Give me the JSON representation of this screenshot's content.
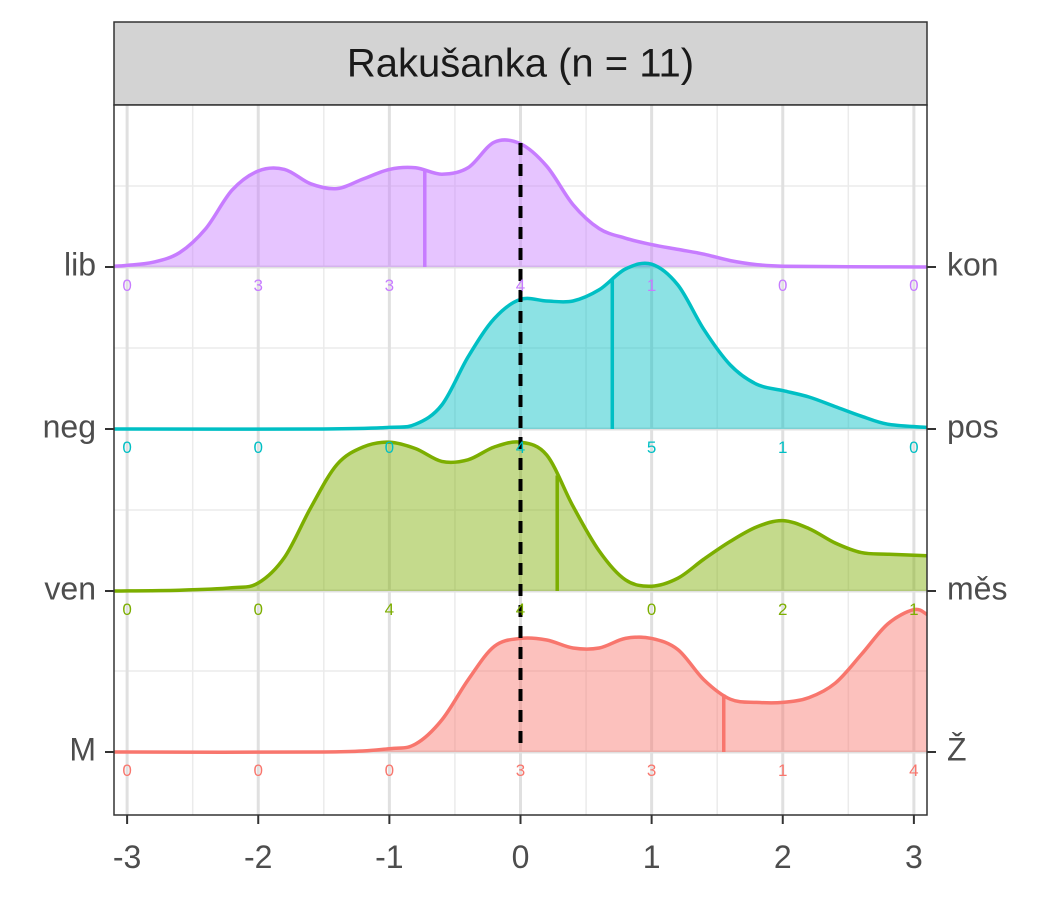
{
  "chart_data": {
    "type": "ridgeline",
    "title": "Rakušanka (n = 11)",
    "xlabel": "",
    "ylabel": "",
    "xlim": [
      -3.1,
      3.1
    ],
    "x_ticks": [
      -3,
      -2,
      -1,
      0,
      1,
      2,
      3
    ],
    "x_tick_labels": [
      "-3",
      "-2",
      "-1",
      "0",
      "1",
      "2",
      "3"
    ],
    "grid": true,
    "reference_line": {
      "x": 0,
      "style": "dashed",
      "color": "#000000"
    },
    "count_positions": [
      -3,
      -2,
      -1,
      0,
      1,
      2,
      3
    ],
    "series": [
      {
        "left_label": "lib",
        "right_label": "kon",
        "color": "#C77CFF",
        "mean": -0.73,
        "counts": [
          0,
          3,
          3,
          4,
          1,
          0,
          0
        ],
        "density": [
          [
            -3.1,
            0.005
          ],
          [
            -3.0,
            0.01
          ],
          [
            -2.8,
            0.03
          ],
          [
            -2.6,
            0.09
          ],
          [
            -2.4,
            0.24
          ],
          [
            -2.2,
            0.48
          ],
          [
            -2.0,
            0.6
          ],
          [
            -1.8,
            0.61
          ],
          [
            -1.6,
            0.52
          ],
          [
            -1.4,
            0.49
          ],
          [
            -1.2,
            0.55
          ],
          [
            -1.0,
            0.61
          ],
          [
            -0.8,
            0.62
          ],
          [
            -0.6,
            0.58
          ],
          [
            -0.4,
            0.62
          ],
          [
            -0.2,
            0.78
          ],
          [
            0.0,
            0.77
          ],
          [
            0.2,
            0.63
          ],
          [
            0.4,
            0.39
          ],
          [
            0.6,
            0.24
          ],
          [
            0.8,
            0.18
          ],
          [
            1.0,
            0.14
          ],
          [
            1.2,
            0.11
          ],
          [
            1.4,
            0.08
          ],
          [
            1.6,
            0.04
          ],
          [
            1.8,
            0.015
          ],
          [
            2.0,
            0.005
          ],
          [
            2.5,
            0.002
          ],
          [
            3.1,
            0.0
          ]
        ]
      },
      {
        "left_label": "neg",
        "right_label": "pos",
        "color": "#00BFC4",
        "mean": 0.7,
        "counts": [
          0,
          0,
          0,
          4,
          5,
          1,
          0
        ],
        "density": [
          [
            -3.1,
            0.0
          ],
          [
            -1.5,
            0.0
          ],
          [
            -1.0,
            0.01
          ],
          [
            -0.8,
            0.03
          ],
          [
            -0.6,
            0.15
          ],
          [
            -0.4,
            0.45
          ],
          [
            -0.2,
            0.69
          ],
          [
            0.0,
            0.81
          ],
          [
            0.2,
            0.8
          ],
          [
            0.4,
            0.8
          ],
          [
            0.6,
            0.87
          ],
          [
            0.8,
            1.0
          ],
          [
            1.0,
            1.03
          ],
          [
            1.2,
            0.9
          ],
          [
            1.4,
            0.62
          ],
          [
            1.6,
            0.4
          ],
          [
            1.8,
            0.28
          ],
          [
            2.0,
            0.24
          ],
          [
            2.2,
            0.2
          ],
          [
            2.4,
            0.14
          ],
          [
            2.6,
            0.08
          ],
          [
            2.8,
            0.03
          ],
          [
            3.1,
            0.01
          ]
        ]
      },
      {
        "left_label": "ven",
        "right_label": "měs",
        "color": "#7CAE00",
        "mean": 0.28,
        "counts": [
          0,
          0,
          4,
          4,
          0,
          2,
          1
        ],
        "density": [
          [
            -3.1,
            0.0
          ],
          [
            -2.6,
            0.005
          ],
          [
            -2.2,
            0.02
          ],
          [
            -2.0,
            0.05
          ],
          [
            -1.8,
            0.21
          ],
          [
            -1.6,
            0.52
          ],
          [
            -1.4,
            0.79
          ],
          [
            -1.2,
            0.9
          ],
          [
            -1.0,
            0.93
          ],
          [
            -0.8,
            0.89
          ],
          [
            -0.6,
            0.81
          ],
          [
            -0.4,
            0.82
          ],
          [
            -0.2,
            0.9
          ],
          [
            0.0,
            0.93
          ],
          [
            0.2,
            0.85
          ],
          [
            0.4,
            0.53
          ],
          [
            0.6,
            0.25
          ],
          [
            0.8,
            0.07
          ],
          [
            1.0,
            0.03
          ],
          [
            1.2,
            0.08
          ],
          [
            1.4,
            0.2
          ],
          [
            1.6,
            0.31
          ],
          [
            1.8,
            0.4
          ],
          [
            2.0,
            0.44
          ],
          [
            2.2,
            0.39
          ],
          [
            2.4,
            0.3
          ],
          [
            2.6,
            0.24
          ],
          [
            2.8,
            0.23
          ],
          [
            3.1,
            0.22
          ]
        ]
      },
      {
        "left_label": "M",
        "right_label": "Ž",
        "color": "#F8766D",
        "mean": 1.55,
        "counts": [
          0,
          0,
          0,
          3,
          3,
          1,
          4
        ],
        "density": [
          [
            -3.1,
            0.0
          ],
          [
            -1.5,
            0.0
          ],
          [
            -1.0,
            0.02
          ],
          [
            -0.8,
            0.05
          ],
          [
            -0.6,
            0.2
          ],
          [
            -0.4,
            0.45
          ],
          [
            -0.2,
            0.66
          ],
          [
            0.0,
            0.71
          ],
          [
            0.2,
            0.7
          ],
          [
            0.4,
            0.65
          ],
          [
            0.6,
            0.65
          ],
          [
            0.8,
            0.71
          ],
          [
            1.0,
            0.71
          ],
          [
            1.2,
            0.64
          ],
          [
            1.4,
            0.45
          ],
          [
            1.6,
            0.33
          ],
          [
            1.8,
            0.31
          ],
          [
            2.0,
            0.31
          ],
          [
            2.2,
            0.34
          ],
          [
            2.4,
            0.43
          ],
          [
            2.6,
            0.61
          ],
          [
            2.8,
            0.8
          ],
          [
            3.0,
            0.89
          ],
          [
            3.1,
            0.86
          ]
        ]
      }
    ]
  }
}
